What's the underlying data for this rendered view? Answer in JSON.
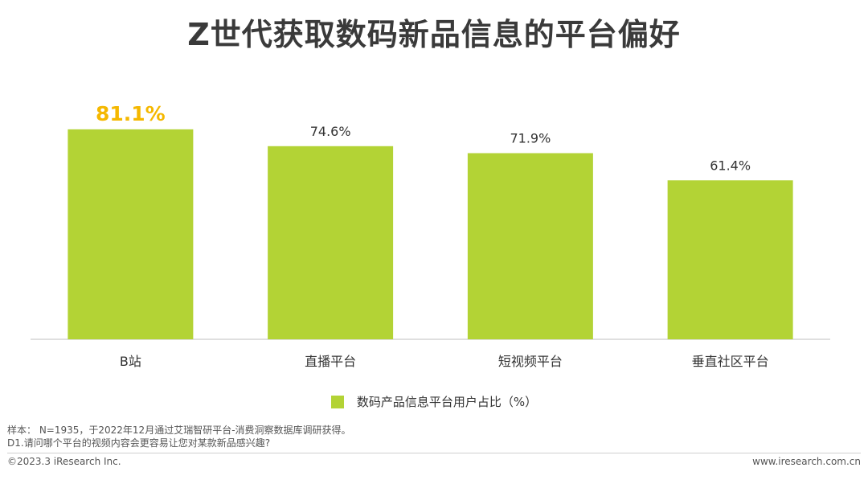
{
  "title": "Z世代获取数码新品信息的平台偏好",
  "chart_data": {
    "type": "bar",
    "categories": [
      "B站",
      "直播平台",
      "短视频平台",
      "垂直社区平台"
    ],
    "series": [
      {
        "name": "数码产品信息平台用户占比（%）",
        "values": [
          81.1,
          74.6,
          71.9,
          61.4
        ]
      }
    ],
    "data_labels": [
      "81.1%",
      "74.6%",
      "71.9%",
      "61.4%"
    ],
    "highlight_index": 0,
    "ylim": [
      0,
      100
    ],
    "grid": false,
    "legend_position": "bottom",
    "colors": {
      "bar": "#b3d335",
      "highlight_label": "#f5b800",
      "label": "#333333",
      "axis": "#bfbfbf"
    }
  },
  "legend": {
    "label": "数码产品信息平台用户占比（%）"
  },
  "notes": {
    "sample": "样本： N=1935，于2022年12月通过艾瑞智研平台-消费洞察数据库调研获得。",
    "question": "D1.请问哪个平台的视频内容会更容易让您对某款新品感兴趣?"
  },
  "footer": {
    "copyright": "©2023.3 iResearch Inc.",
    "website": "www.iresearch.com.cn"
  }
}
